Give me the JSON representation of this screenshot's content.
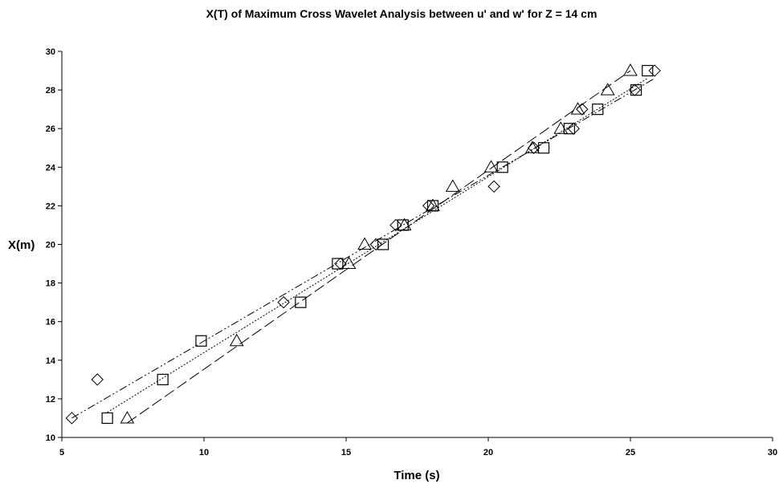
{
  "chart_data": {
    "type": "scatter",
    "title": "X(T) of Maximum Cross Wavelet Analysis between u' and w' for Z = 14 cm",
    "xlabel": "Time (s)",
    "ylabel": "X(m)",
    "xlim": [
      5,
      30
    ],
    "ylim": [
      10,
      30
    ],
    "xticks": [
      5,
      10,
      15,
      20,
      25,
      30
    ],
    "yticks": [
      10,
      12,
      14,
      16,
      18,
      20,
      22,
      24,
      26,
      28,
      30
    ],
    "grid": false,
    "legend": "none",
    "series": [
      {
        "marker": "diamond",
        "trendline": "dash-dot-dot",
        "points": [
          [
            5.35,
            11
          ],
          [
            6.25,
            13
          ],
          [
            12.8,
            17
          ],
          [
            14.8,
            19
          ],
          [
            16.05,
            20
          ],
          [
            16.75,
            21
          ],
          [
            17.9,
            22
          ],
          [
            20.2,
            23
          ],
          [
            21.6,
            25
          ],
          [
            23.0,
            26
          ],
          [
            23.3,
            27
          ],
          [
            25.15,
            28
          ],
          [
            25.85,
            29
          ]
        ],
        "fit": [
          [
            5.35,
            11.0
          ],
          [
            25.85,
            28.6
          ]
        ]
      },
      {
        "marker": "square",
        "trendline": "dotted",
        "points": [
          [
            6.6,
            11
          ],
          [
            8.55,
            13
          ],
          [
            9.9,
            15
          ],
          [
            13.4,
            17
          ],
          [
            14.7,
            19
          ],
          [
            16.3,
            20
          ],
          [
            17.0,
            21
          ],
          [
            18.05,
            22
          ],
          [
            20.5,
            24
          ],
          [
            21.95,
            25
          ],
          [
            22.85,
            26
          ],
          [
            23.85,
            27
          ],
          [
            25.2,
            28
          ],
          [
            25.6,
            29
          ]
        ],
        "fit": [
          [
            6.6,
            11.3
          ],
          [
            25.6,
            28.6
          ]
        ]
      },
      {
        "marker": "triangle",
        "trendline": "long-dash",
        "points": [
          [
            7.3,
            11
          ],
          [
            11.15,
            15
          ],
          [
            15.1,
            19
          ],
          [
            15.65,
            20
          ],
          [
            17.05,
            21
          ],
          [
            18.05,
            22
          ],
          [
            18.75,
            23
          ],
          [
            20.1,
            24
          ],
          [
            21.55,
            25
          ],
          [
            22.55,
            26
          ],
          [
            23.15,
            27
          ],
          [
            24.2,
            28
          ],
          [
            25.0,
            29
          ]
        ],
        "fit": [
          [
            7.3,
            10.75
          ],
          [
            25.0,
            29.0
          ]
        ]
      }
    ]
  }
}
